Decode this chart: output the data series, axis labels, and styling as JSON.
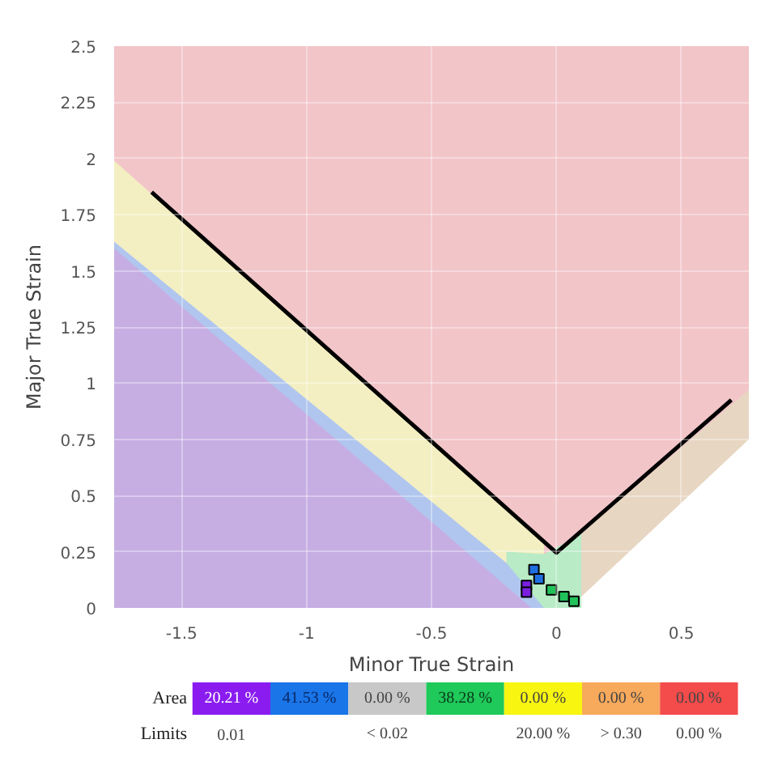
{
  "chart_data": {
    "type": "area",
    "xlabel": "Minor True Strain",
    "ylabel": "Major True Strain",
    "xlim": [
      -1.77,
      0.77
    ],
    "ylim": [
      0,
      2.5
    ],
    "xticks": [
      -1.5,
      -1,
      -0.5,
      0,
      0.5
    ],
    "yticks": [
      0,
      0.25,
      0.5,
      0.75,
      1,
      1.25,
      1.5,
      1.75,
      2,
      2.25,
      2.5
    ],
    "grid": true,
    "bands": [
      {
        "axis": "y",
        "from": 0,
        "to": 2.5,
        "color": "#f2c5c9"
      }
    ],
    "series": [
      {
        "color": "#f3efc2",
        "x": [
          -1.77,
          -0.25,
          -0.05
        ],
        "values": [
          1.99,
          0.49,
          0.29
        ]
      },
      {
        "color": "#e7d6c2",
        "x": [
          0.1,
          0.77
        ],
        "values": [
          0.335,
          0.97
        ]
      },
      {
        "color": "#b8ebc6",
        "x": [
          -0.2,
          -0.05,
          0.1
        ],
        "values": [
          0.25,
          0.24,
          0.33
        ]
      },
      {
        "color": "#ffffff",
        "x": [
          0.1,
          0.77
        ],
        "values": [
          0.05,
          0.75
        ]
      },
      {
        "color": "#b0c6ef",
        "x": [
          -1.77,
          -0.2,
          -0.05
        ],
        "values": [
          1.63,
          0.2,
          0
        ]
      },
      {
        "color": "#c6aee3",
        "x": [
          -1.77,
          -0.1
        ],
        "values": [
          1.6,
          0
        ]
      },
      {
        "type": "line",
        "color": "#000000",
        "x": [
          -1.62,
          0,
          0.7
        ],
        "values": [
          1.85,
          0.245,
          0.925
        ]
      },
      {
        "type": "scatter",
        "color": "#7a1fe0",
        "marker": "square",
        "x": [
          -0.12,
          -0.12
        ],
        "values": [
          0.1,
          0.07
        ]
      },
      {
        "type": "scatter",
        "color": "#1f6fe0",
        "marker": "square",
        "x": [
          -0.09,
          -0.07
        ],
        "values": [
          0.17,
          0.13
        ]
      },
      {
        "type": "scatter",
        "color": "#22c25a",
        "marker": "square",
        "x": [
          -0.02,
          0.03,
          0.07
        ],
        "values": [
          0.08,
          0.05,
          0.03
        ]
      }
    ],
    "annotations": [
      "Area",
      "20.21 %",
      "41.53 %",
      "0.00 %",
      "38.28 %",
      "0.00 %",
      "0.00 %",
      "0.00 %",
      "Limits",
      "0.01",
      "< 0.02",
      "20.00 %",
      "> 0.30",
      "0.00 %"
    ]
  }
}
